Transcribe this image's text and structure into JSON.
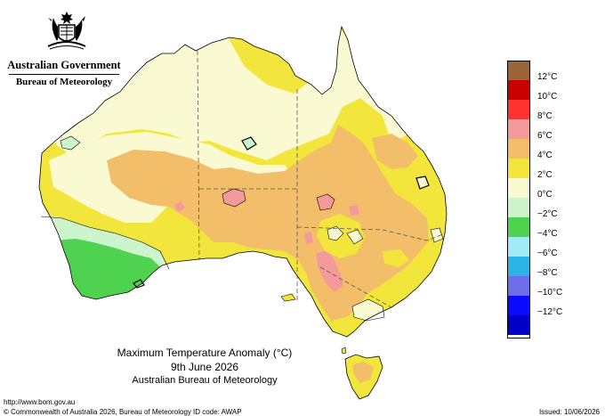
{
  "header": {
    "government": "Australian Government",
    "agency": "Bureau of Meteorology"
  },
  "map": {
    "title": "Maximum Temperature Anomaly (°C)",
    "date": "9th June 2026",
    "source": "Australian Bureau of Meteorology",
    "state_borders": "dashed",
    "anomaly_field": [
      {
        "region": "far south-west WA",
        "anomaly": "-4 to -2",
        "color": "#4fd24f"
      },
      {
        "region": "south-west WA coast",
        "anomaly": "-2 to 0",
        "color": "#cdf5cd"
      },
      {
        "region": "Kimberley and Top End",
        "anomaly": "0 to 2",
        "color": "#fafad2"
      },
      {
        "region": "Cape York",
        "anomaly": "0 to 2",
        "color": "#fafad2"
      },
      {
        "region": "central Australia",
        "anomaly": "4 to 6",
        "color": "#f2be6a"
      },
      {
        "region": "SA / NSW border area",
        "anomaly": "6 to 8",
        "color": "#f49a9a"
      },
      {
        "region": "Tasmania",
        "anomaly": "2 to 6",
        "color": "#f2e63c"
      }
    ]
  },
  "legend": {
    "items": [
      {
        "label": "12°C",
        "color": "#9b6437"
      },
      {
        "label": "10°C",
        "color": "#c80000"
      },
      {
        "label": "8°C",
        "color": "#ff3232"
      },
      {
        "label": "6°C",
        "color": "#f49a9a"
      },
      {
        "label": "4°C",
        "color": "#f2be6a"
      },
      {
        "label": "2°C",
        "color": "#f2e63c"
      },
      {
        "label": "0°C",
        "color": "#fafad2"
      },
      {
        "label": "−2°C",
        "color": "#cdf5cd"
      },
      {
        "label": "−4°C",
        "color": "#4fd24f"
      },
      {
        "label": "−6°C",
        "color": "#a0ebf5"
      },
      {
        "label": "−8°C",
        "color": "#2db4e6"
      },
      {
        "label": "−10°C",
        "color": "#6e6eeb"
      },
      {
        "label": "−12°C",
        "color": "#0a0aff"
      },
      {
        "label": "",
        "color": "#0000c8"
      }
    ]
  },
  "footer": {
    "url": "http://www.bom.gov.au",
    "copyright": "© Commonwealth of Australia 2026, Bureau of Meteorology",
    "id_code": "ID code: AWAP",
    "issued": "Issued: 10/06/2026"
  }
}
